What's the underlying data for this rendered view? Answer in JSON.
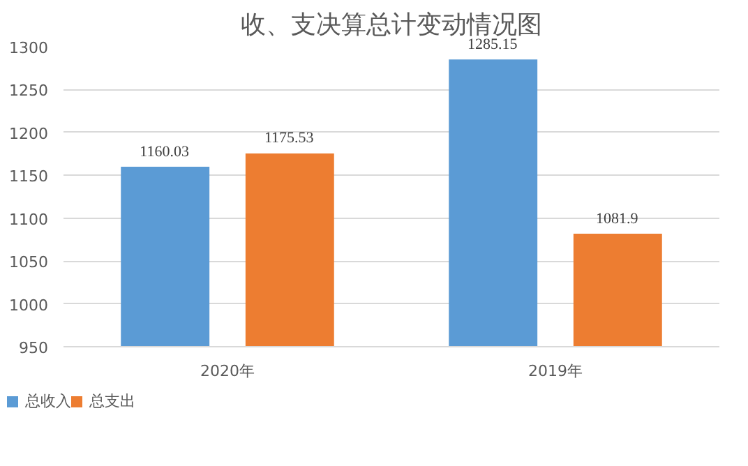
{
  "chart_data": {
    "type": "bar",
    "title": "收、支决算总计变动情况图",
    "categories": [
      "2020年",
      "2019年"
    ],
    "series": [
      {
        "name": "总收入",
        "color": "#5b9bd5",
        "values": [
          1160.03,
          1285.15
        ]
      },
      {
        "name": "总支出",
        "color": "#ed7d31",
        "values": [
          1175.53,
          1081.9
        ]
      }
    ],
    "ylim": [
      950,
      1300
    ],
    "yticks": [
      950,
      1000,
      1050,
      1100,
      1150,
      1200,
      1250,
      1300
    ],
    "grid": "y",
    "legend": "bottom",
    "data_labels": true
  }
}
